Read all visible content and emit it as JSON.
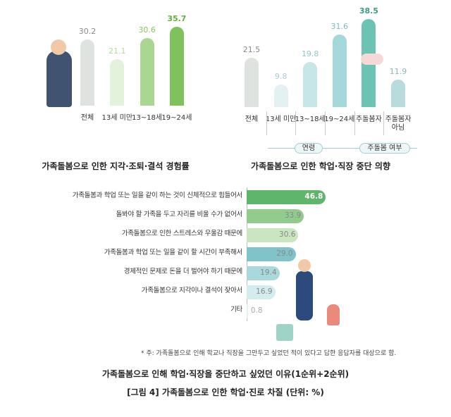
{
  "figure_caption": "[그림 4] 가족돌봄으로 인한 학업·진로 차질 (단위: %)",
  "chart_data": [
    {
      "type": "bar",
      "title": "가족돌봄으로 인한 지각·조퇴·결석 경험률",
      "categories": [
        "전체",
        "13세 미만",
        "13~18세",
        "19~24세"
      ],
      "values": [
        30.2,
        21.1,
        30.6,
        35.7
      ],
      "colors": [
        "#dfe3e0",
        "#e3f2da",
        "#a9d690",
        "#7fc25c"
      ],
      "label_colors": [
        "#8a8a8a",
        "#b6dba1",
        "#86c467",
        "#63ad43"
      ],
      "ylim": [
        0,
        40
      ]
    },
    {
      "type": "bar",
      "title": "가족돌봄으로 인한 학업·직장 중단 의향",
      "categories": [
        "전체",
        "13세 미만",
        "13~18세",
        "19~24세",
        "주돌봄자",
        "주돌봄자\n아님"
      ],
      "values": [
        21.5,
        9.8,
        19.8,
        31.6,
        38.5,
        11.9
      ],
      "groups": [
        "연령",
        "주돌봄 여부"
      ],
      "colors": [
        "#dfe3e0",
        "#e2f2f3",
        "#c6e6e8",
        "#a4d8db",
        "#6cc3b3",
        "#b8dcdc"
      ],
      "label_colors": [
        "#8a8a8a",
        "#a9cfd2",
        "#95c6ca",
        "#7bbcc1",
        "#3c9c86",
        "#8ab9ba"
      ],
      "ylim": [
        0,
        40
      ]
    },
    {
      "type": "hbar",
      "title": "가족돌봄으로 인해 학업·직장을 중단하고 싶었던 이유(1순위+2순위)",
      "note": "* 주: 가족돌봄으로 인해 학교나 직장을 그만두고 싶었던 적이 있다고 답한 응답자를 대상으로 함.",
      "categories": [
        "가족돌봄과 학업 또는 일을 같이 하는 것이 신체적으로 힘들어서",
        "돌봐야 할 가족을 두고 자리를 비울 수가 없어서",
        "가족돌봄으로 인한 스트레스와 우울감 때문에",
        "가족돌봄과 학업 또는 일을 같이 할 시간이 부족해서",
        "경제적인 문제로 돈을 더 벌어야 하기 때문에",
        "가족돌봄으로 지각이나 결석이 잦아서",
        "기타"
      ],
      "values": [
        46.8,
        33.9,
        30.6,
        29.0,
        19.4,
        16.9,
        0.8
      ],
      "value_labels": [
        "46.8",
        "33.9",
        "30.6",
        "29.0",
        "19.4",
        "16.9",
        "0.8"
      ],
      "colors": [
        "#5fb56a",
        "#92cc8d",
        "#c9e6c1",
        "#80c4c9",
        "#a9d9dd",
        "#d3ecee",
        "#e6f2f2"
      ],
      "xlim": [
        0,
        50
      ]
    }
  ]
}
